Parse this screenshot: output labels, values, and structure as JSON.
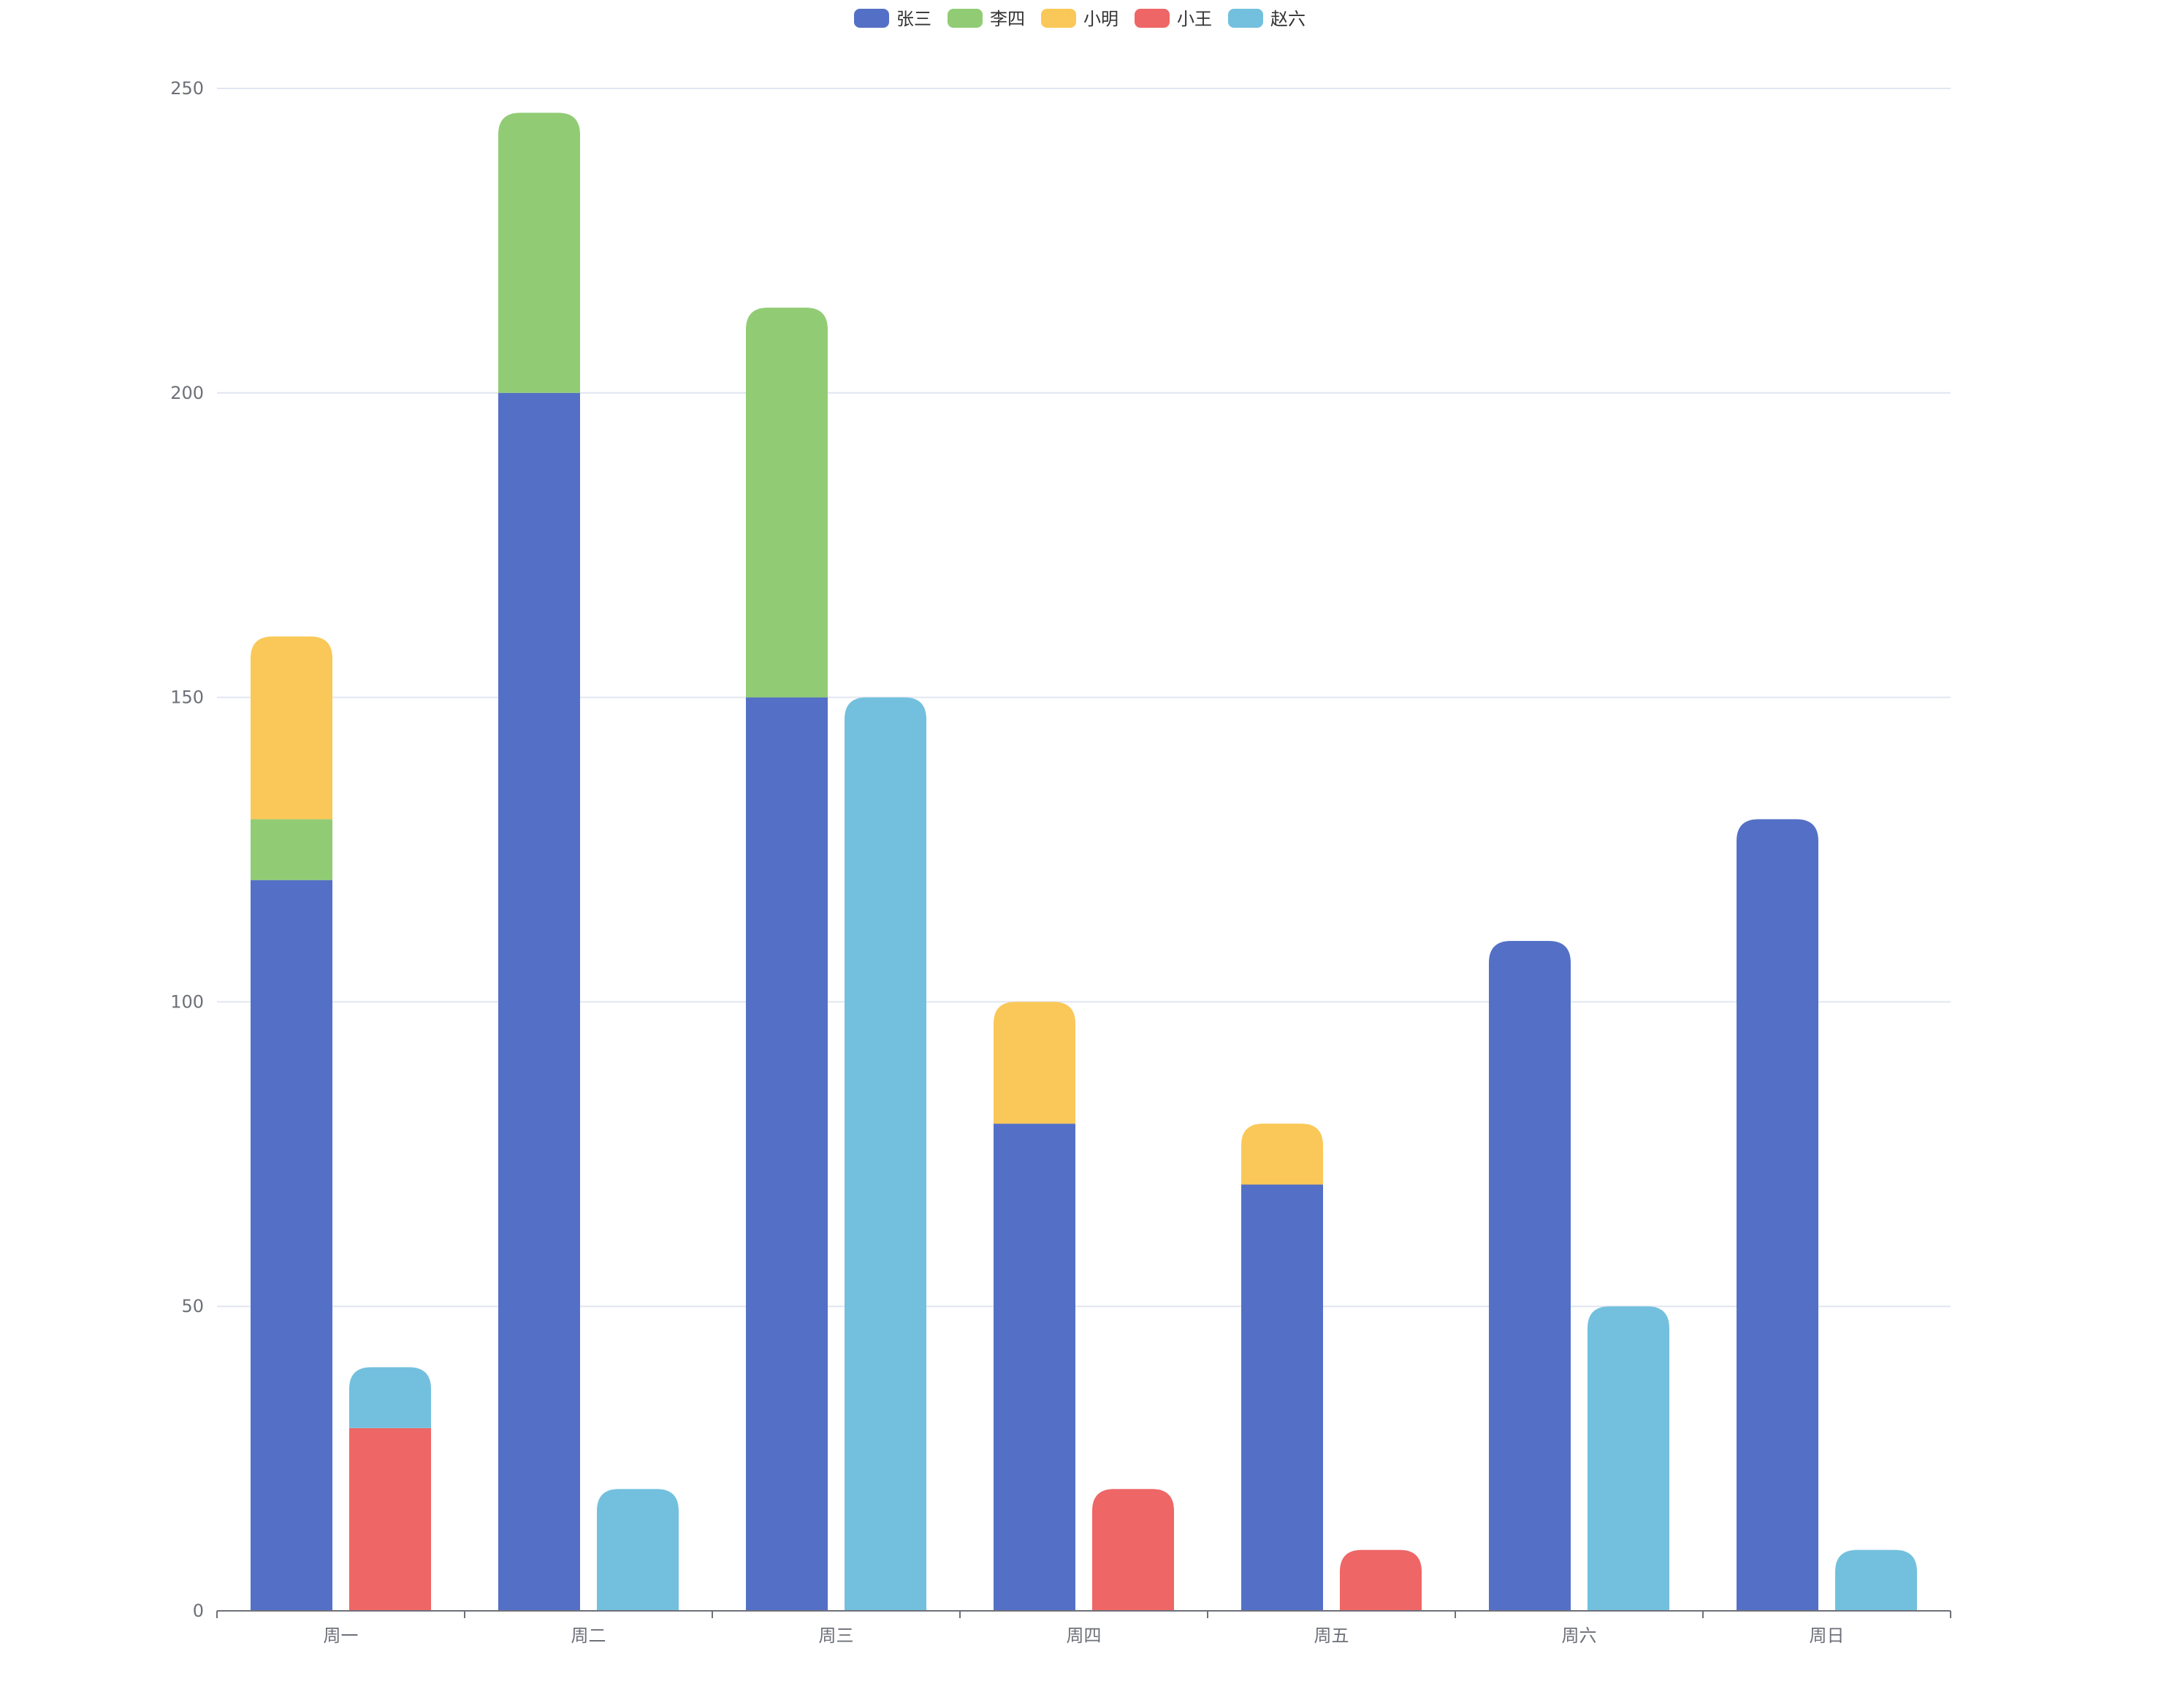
{
  "chart_data": {
    "type": "bar",
    "stacked": true,
    "categories": [
      "周一",
      "周二",
      "周三",
      "周四",
      "周五",
      "周六",
      "周日"
    ],
    "stack_groups": [
      [
        "张三",
        "李四",
        "小明"
      ],
      [
        "小王",
        "赵六"
      ]
    ],
    "series": [
      {
        "name": "张三",
        "stack": "A",
        "color": "#5470c6",
        "values": [
          120,
          200,
          150,
          80,
          70,
          110,
          130
        ]
      },
      {
        "name": "李四",
        "stack": "A",
        "color": "#91cc75",
        "values": [
          10,
          46,
          64,
          0,
          0,
          0,
          0
        ]
      },
      {
        "name": "小明",
        "stack": "A",
        "color": "#fac858",
        "values": [
          30,
          0,
          0,
          20,
          10,
          0,
          0
        ]
      },
      {
        "name": "小王",
        "stack": "B",
        "color": "#ee6666",
        "values": [
          30,
          0,
          0,
          20,
          10,
          0,
          0
        ]
      },
      {
        "name": "赵六",
        "stack": "B",
        "color": "#73c0de",
        "values": [
          10,
          20,
          150,
          0,
          0,
          50,
          10
        ]
      }
    ],
    "y_ticks": [
      "0",
      "50",
      "100",
      "150",
      "200",
      "250"
    ],
    "ylim": [
      0,
      250
    ],
    "grid": true,
    "legend_position": "top-center",
    "title": "",
    "xlabel": "",
    "ylabel": ""
  }
}
